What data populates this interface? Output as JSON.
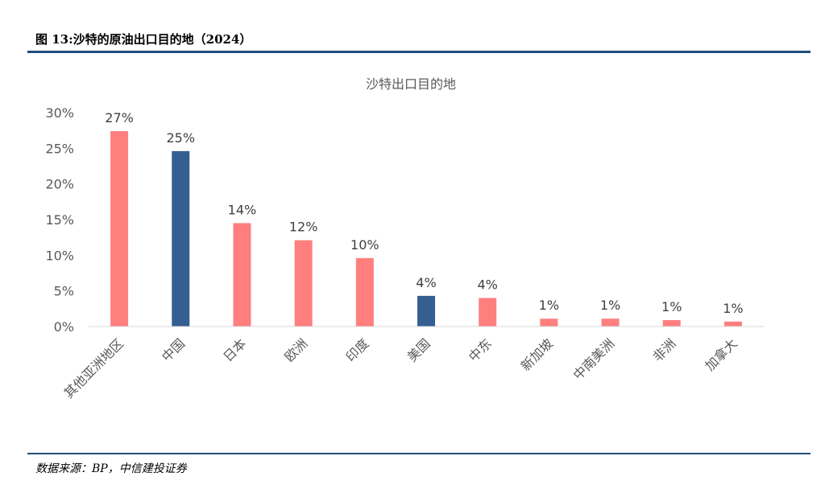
{
  "figure": {
    "title": "图 13:沙特的原油出口目的地（2024）",
    "source": "数据来源：BP，中信建投证券"
  },
  "chart_data": {
    "type": "bar",
    "title": "沙特出口目的地",
    "xlabel": "",
    "ylabel": "",
    "ylim": [
      0,
      30
    ],
    "yticks": [
      "0%",
      "5%",
      "10%",
      "15%",
      "20%",
      "25%",
      "30%"
    ],
    "grid": false,
    "legend": "none",
    "categories": [
      "其他亚洲地区",
      "中国",
      "日本",
      "欧洲",
      "印度",
      "美国",
      "中东",
      "新加坡",
      "中南美洲",
      "非洲",
      "加拿大"
    ],
    "values": [
      27.4,
      24.6,
      14.5,
      12.1,
      9.6,
      4.3,
      4.0,
      1.1,
      1.1,
      0.9,
      0.7
    ],
    "data_labels": [
      "27%",
      "25%",
      "14%",
      "12%",
      "10%",
      "4%",
      "4%",
      "1%",
      "1%",
      "1%",
      "1%"
    ],
    "colors": [
      "#ff7f7f",
      "#365f91",
      "#ff7f7f",
      "#ff7f7f",
      "#ff7f7f",
      "#365f91",
      "#ff7f7f",
      "#ff7f7f",
      "#ff7f7f",
      "#ff7f7f",
      "#ff7f7f"
    ],
    "axis_color": "#d9d9d9",
    "text_color": "#595959"
  }
}
